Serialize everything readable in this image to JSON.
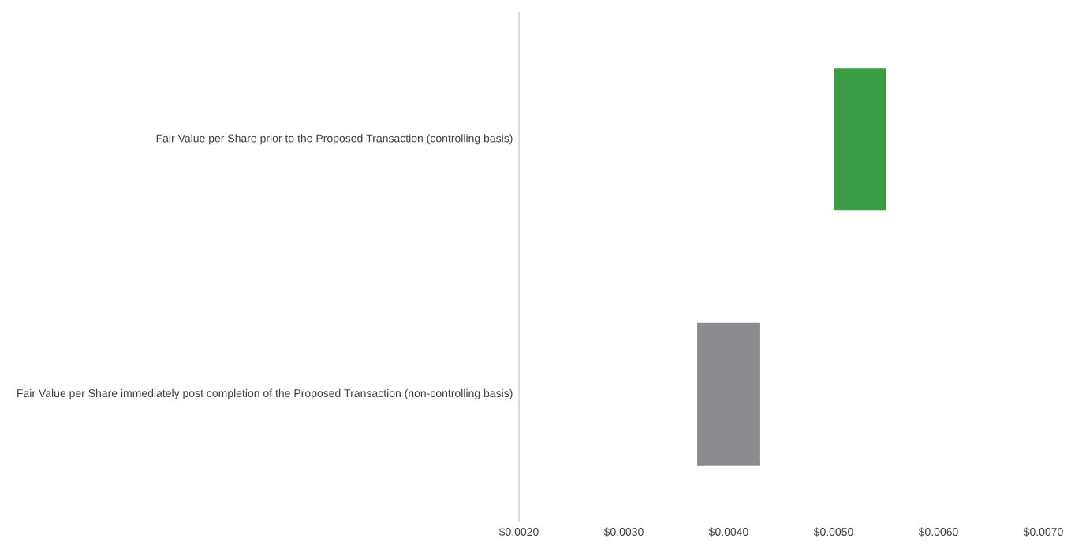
{
  "chart_data": {
    "type": "bar",
    "orientation": "horizontal",
    "categories": [
      "Fair Value per Share prior to the Proposed Transaction (controlling basis)",
      "Fair Value per Share immediately post completion of the Proposed Transaction (non-controlling basis)"
    ],
    "base": [
      0.005,
      0.0037
    ],
    "values": [
      0.0005,
      0.0006
    ],
    "colors": [
      "#3a9d45",
      "#8a8b8e"
    ],
    "xlim": [
      0.002,
      0.007
    ],
    "xticks": [
      {
        "value": 0.002,
        "label": "$0.0020"
      },
      {
        "value": 0.003,
        "label": "$0.0030"
      },
      {
        "value": 0.004,
        "label": "$0.0040"
      },
      {
        "value": 0.005,
        "label": "$0.0050"
      },
      {
        "value": 0.006,
        "label": "$0.0060"
      },
      {
        "value": 0.007,
        "label": "$0.0070"
      }
    ],
    "grid": false
  }
}
